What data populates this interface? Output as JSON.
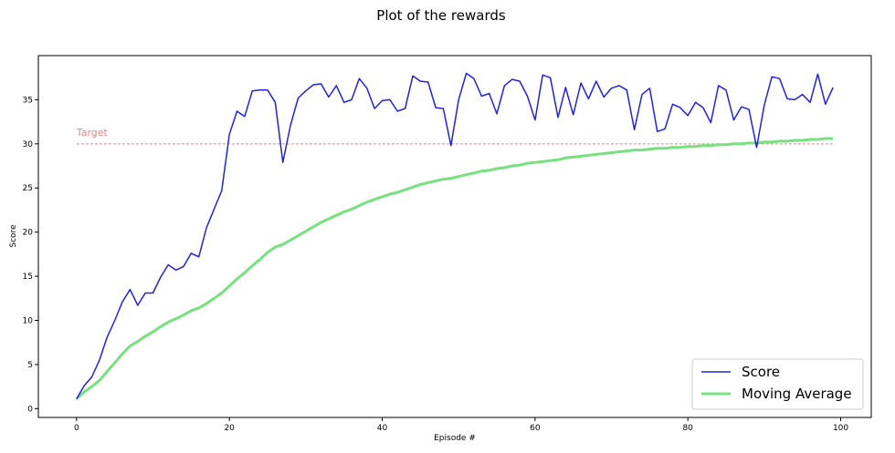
{
  "chart_data": {
    "type": "line",
    "title": "Plot of the rewards",
    "xlabel": "Episode #",
    "ylabel": "Score",
    "xlim": [
      -5,
      104
    ],
    "ylim": [
      -1,
      40
    ],
    "xticks": [
      0,
      20,
      40,
      60,
      80,
      100
    ],
    "yticks": [
      0,
      5,
      10,
      15,
      20,
      25,
      30,
      35
    ],
    "grid": false,
    "legend_position": "bottom-right",
    "target": {
      "label": "Target",
      "value": 30,
      "color": "#f08080"
    },
    "series": [
      {
        "name": "Score",
        "color": "#2222dd",
        "values": [
          1.1,
          2.6,
          3.6,
          5.5,
          8.1,
          10.0,
          12.1,
          13.5,
          11.7,
          13.1,
          13.1,
          14.9,
          16.3,
          15.7,
          16.1,
          17.6,
          17.2,
          20.5,
          22.6,
          24.7,
          31.1,
          33.7,
          33.1,
          36.0,
          36.1,
          36.1,
          34.7,
          27.9,
          32.1,
          35.2,
          36.0,
          36.7,
          36.8,
          35.3,
          36.6,
          34.7,
          35.0,
          37.4,
          36.3,
          34.0,
          34.9,
          35.0,
          33.7,
          34.0,
          37.7,
          37.1,
          37.0,
          34.1,
          34.0,
          29.8,
          35.0,
          38.0,
          37.4,
          35.4,
          35.7,
          33.4,
          36.6,
          37.3,
          37.1,
          35.4,
          32.7,
          37.8,
          37.5,
          33.0,
          36.4,
          33.3,
          36.9,
          35.1,
          37.1,
          35.3,
          36.3,
          36.6,
          36.1,
          31.6,
          35.6,
          36.3,
          31.4,
          31.7,
          34.5,
          34.1,
          33.2,
          34.7,
          34.1,
          32.4,
          36.6,
          36.1,
          32.7,
          34.2,
          33.9,
          29.6,
          34.4,
          37.6,
          37.4,
          35.1,
          35.0,
          35.6,
          34.7,
          37.9,
          34.5,
          36.4
        ]
      },
      {
        "name": "Moving Average",
        "color": "#77e07f",
        "values": [
          1.1,
          1.9,
          2.5,
          3.2,
          4.2,
          5.2,
          6.2,
          7.1,
          7.6,
          8.2,
          8.7,
          9.3,
          9.8,
          10.2,
          10.6,
          11.1,
          11.4,
          11.9,
          12.5,
          13.1,
          13.9,
          14.7,
          15.4,
          16.2,
          16.9,
          17.7,
          18.3,
          18.6,
          19.1,
          19.6,
          20.1,
          20.6,
          21.1,
          21.5,
          21.9,
          22.3,
          22.6,
          23.0,
          23.4,
          23.7,
          24.0,
          24.3,
          24.5,
          24.8,
          25.1,
          25.4,
          25.6,
          25.8,
          26.0,
          26.1,
          26.3,
          26.5,
          26.7,
          26.9,
          27.0,
          27.2,
          27.3,
          27.5,
          27.6,
          27.8,
          27.9,
          28.0,
          28.1,
          28.2,
          28.4,
          28.5,
          28.6,
          28.7,
          28.8,
          28.9,
          29.0,
          29.1,
          29.2,
          29.3,
          29.3,
          29.4,
          29.5,
          29.5,
          29.6,
          29.6,
          29.7,
          29.7,
          29.8,
          29.8,
          29.9,
          29.9,
          30.0,
          30.0,
          30.1,
          30.1,
          30.2,
          30.2,
          30.3,
          30.3,
          30.4,
          30.4,
          30.5,
          30.5,
          30.6,
          30.6
        ]
      }
    ]
  }
}
